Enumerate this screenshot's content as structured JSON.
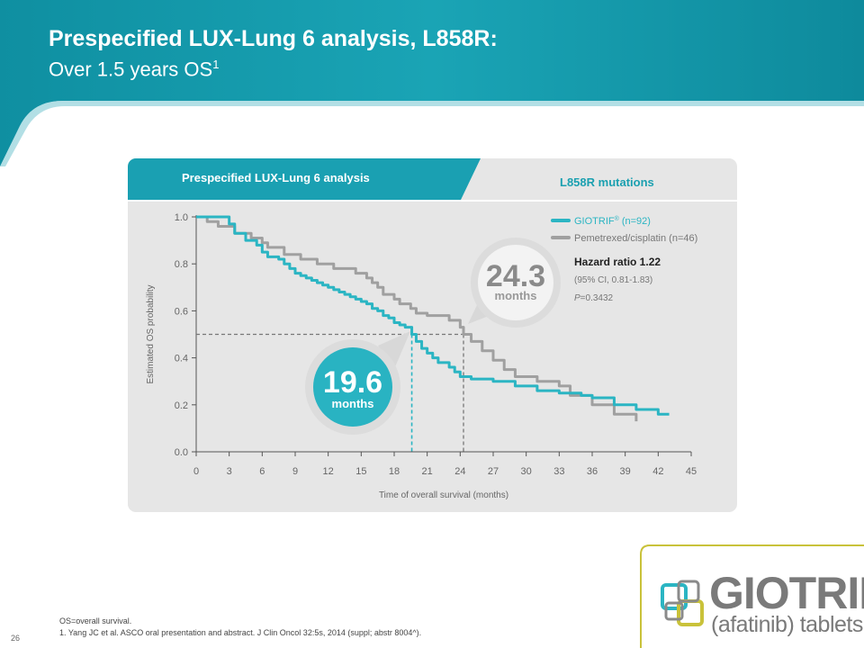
{
  "title": {
    "line1": "Prespecified LUX-Lung 6 analysis, L858R:",
    "line2": "Over 1.5 years OS",
    "line2_sup": "1"
  },
  "panel": {
    "tab_label": "Prespecified LUX-Lung 6 analysis",
    "mutation_label": "L858R mutations"
  },
  "legend": {
    "giotrif_name": "GIOTRIF",
    "giotrif_sup": "®",
    "giotrif_n": "(n=92)",
    "pem_name": "Pemetrexed/cisplatin",
    "pem_n": "(n=46)"
  },
  "stats": {
    "hazard_ratio": "Hazard ratio 1.22",
    "ci": "(95% CI, 0.81-1.83)",
    "p_prefix": "P",
    "p_value": "=0.3432"
  },
  "callouts": {
    "giotrif_median": "19.6",
    "giotrif_unit": "months",
    "pem_median": "24.3",
    "pem_unit": "months"
  },
  "footer": {
    "abbrev": "OS=overall survival.",
    "ref": "1.    Yang JC et al. ASCO oral presentation and abstract. J Clin Oncol 32:5s, 2014 (suppl; abstr 8004^).",
    "page": "26"
  },
  "logo": {
    "brand": "GIOTRIF",
    "reg": "®",
    "sub": "(afatinib) tablets"
  },
  "colors": {
    "teal": "#2bb5c3",
    "grey": "#a0a0a0",
    "banner": "#1499ab"
  },
  "chart_data": {
    "type": "line",
    "xlabel": "Time of overall survival (months)",
    "ylabel": "Estimated OS probability",
    "xlim": [
      0,
      45
    ],
    "ylim": [
      0,
      1.0
    ],
    "x_ticks": [
      0,
      3,
      6,
      9,
      12,
      15,
      18,
      21,
      24,
      27,
      30,
      33,
      36,
      39,
      42,
      45
    ],
    "y_ticks": [
      "0.0",
      "0.2",
      "0.4",
      "0.6",
      "0.8",
      "1.0"
    ],
    "median_line_y": 0.5,
    "series": [
      {
        "name": "GIOTRIF",
        "color": "#2bb5c3",
        "median": 19.6,
        "x": [
          0,
          2.5,
          3.0,
          3.5,
          4.5,
          5.5,
          6.0,
          6.5,
          7.5,
          8.0,
          8.5,
          9.0,
          9.5,
          10.0,
          10.5,
          11.0,
          11.5,
          12.0,
          12.5,
          13.0,
          13.5,
          14.0,
          14.5,
          15.0,
          15.5,
          16.0,
          16.5,
          17.0,
          17.5,
          18.0,
          18.5,
          19.0,
          19.6,
          20.0,
          20.5,
          21.0,
          21.5,
          22.0,
          23.0,
          23.5,
          24.0,
          25.0,
          27.0,
          29.0,
          31.0,
          33.0,
          35.0,
          36.0,
          38.0,
          40.0,
          42.0,
          43.0
        ],
        "y": [
          1.0,
          1.0,
          0.97,
          0.93,
          0.9,
          0.88,
          0.85,
          0.83,
          0.82,
          0.8,
          0.78,
          0.76,
          0.75,
          0.74,
          0.73,
          0.72,
          0.71,
          0.7,
          0.69,
          0.68,
          0.67,
          0.66,
          0.65,
          0.64,
          0.63,
          0.61,
          0.6,
          0.58,
          0.57,
          0.55,
          0.54,
          0.53,
          0.5,
          0.47,
          0.44,
          0.42,
          0.4,
          0.38,
          0.36,
          0.34,
          0.32,
          0.31,
          0.3,
          0.28,
          0.26,
          0.25,
          0.24,
          0.23,
          0.2,
          0.18,
          0.16,
          0.16
        ]
      },
      {
        "name": "Pemetrexed/cisplatin",
        "color": "#a0a0a0",
        "median": 24.3,
        "x": [
          0,
          1.0,
          2.0,
          3.5,
          5.0,
          6.0,
          6.5,
          8.0,
          9.5,
          11.0,
          12.5,
          14.5,
          15.5,
          16.0,
          16.5,
          17.0,
          18.0,
          18.5,
          19.5,
          20.0,
          21.0,
          23.0,
          24.0,
          24.3,
          25.0,
          26.0,
          27.0,
          28.0,
          29.0,
          31.0,
          33.0,
          34.0,
          36.0,
          38.0,
          40.0
        ],
        "y": [
          1.0,
          0.98,
          0.96,
          0.93,
          0.91,
          0.89,
          0.87,
          0.84,
          0.82,
          0.8,
          0.78,
          0.76,
          0.74,
          0.72,
          0.7,
          0.67,
          0.65,
          0.63,
          0.61,
          0.59,
          0.58,
          0.56,
          0.53,
          0.5,
          0.47,
          0.43,
          0.39,
          0.35,
          0.32,
          0.3,
          0.28,
          0.24,
          0.2,
          0.16,
          0.13
        ]
      }
    ]
  }
}
